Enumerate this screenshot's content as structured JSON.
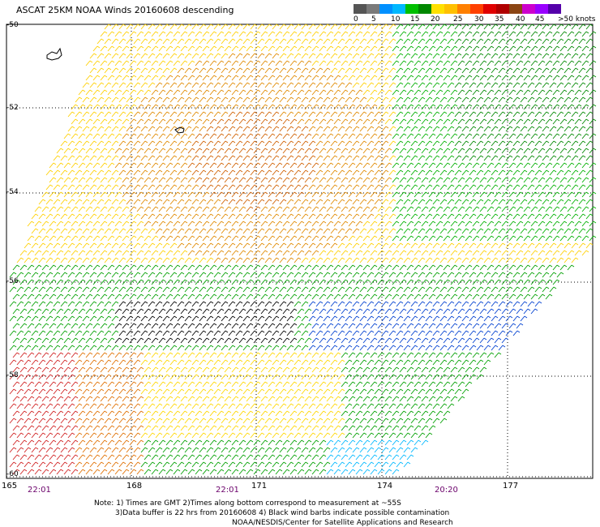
{
  "header": {
    "title": "ASCAT 25KM NOAA Winds 20160608 descending"
  },
  "legend": {
    "colors": [
      "#555555",
      "#7a7a7a",
      "#0090ff",
      "#00b8ff",
      "#00c000",
      "#008800",
      "#ffe000",
      "#ffc000",
      "#ff8000",
      "#ff4000",
      "#e00000",
      "#b00000",
      "#8b4513",
      "#cc00cc",
      "#9900ff",
      "#5500aa"
    ],
    "labels": [
      "0",
      "5",
      "10",
      "15",
      "20",
      "25",
      "30",
      "35",
      "40",
      "45",
      ">50 knots"
    ]
  },
  "map": {
    "lat_labels": [
      "-50",
      "-52",
      "-54",
      "-56",
      "-58",
      "-60"
    ],
    "lon_labels": [
      "165",
      "168",
      "171",
      "174",
      "177"
    ],
    "time_labels": [
      "22:01",
      "22:01",
      "20:20"
    ]
  },
  "notes": {
    "line1": "Note: 1) Times are GMT 2)Times along bottom correspond to measurement at ~55S",
    "line2": "3)Data buffer is 22 hrs from 20160608 4) Black wind barbs indicate possible contamination",
    "line3": "NOAA/NESDIS/Center for Satellite Applications and Research"
  }
}
